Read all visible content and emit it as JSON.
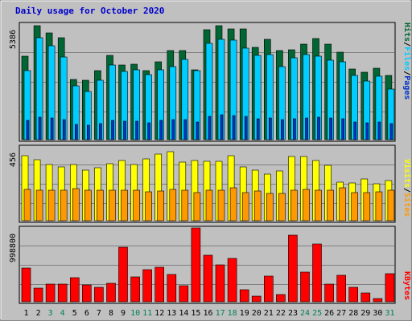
{
  "chart_data": {
    "type": "bar",
    "title": "Daily usage for October 2020",
    "categories": [
      "1",
      "2",
      "3",
      "4",
      "5",
      "6",
      "7",
      "8",
      "9",
      "10",
      "11",
      "12",
      "13",
      "14",
      "15",
      "16",
      "17",
      "18",
      "19",
      "20",
      "21",
      "22",
      "23",
      "24",
      "25",
      "26",
      "27",
      "28",
      "29",
      "30",
      "31"
    ],
    "weekend_days": [
      "3",
      "4",
      "10",
      "11",
      "17",
      "18",
      "24",
      "25",
      "31"
    ],
    "top_panel": {
      "axis_max_label": "5386",
      "ylim": [
        0,
        5386
      ],
      "grid": true,
      "series": [
        {
          "name": "Hits",
          "color": "#006633",
          "values": [
            3880,
            5300,
            4980,
            4760,
            2790,
            2760,
            3220,
            3940,
            3460,
            3520,
            3210,
            3640,
            4140,
            4140,
            3250,
            5120,
            5300,
            5180,
            5160,
            4290,
            4690,
            4150,
            4200,
            4450,
            4720,
            4450,
            4090,
            3310,
            3140,
            3320,
            3010
          ]
        },
        {
          "name": "Files",
          "color": "#00CCFF",
          "values": [
            3230,
            4740,
            4390,
            3860,
            2520,
            2240,
            2780,
            3470,
            3180,
            3240,
            3020,
            3270,
            3420,
            3740,
            3200,
            4480,
            4690,
            4640,
            4270,
            3940,
            3950,
            3390,
            3820,
            3980,
            3900,
            3720,
            3620,
            3010,
            2740,
            2970,
            2340
          ]
        },
        {
          "name": "Pages",
          "color": "#0033CC",
          "values": [
            900,
            1050,
            1000,
            950,
            700,
            680,
            750,
            900,
            850,
            860,
            800,
            880,
            950,
            950,
            820,
            1100,
            1150,
            1120,
            1100,
            980,
            1000,
            940,
            960,
            1000,
            1050,
            1000,
            960,
            830,
            800,
            820,
            760
          ]
        }
      ]
    },
    "middle_panel": {
      "axis_max_label": "456",
      "ylim": [
        0,
        456
      ],
      "grid": true,
      "series": [
        {
          "name": "Visits",
          "color": "#FFFF00",
          "values": [
            402,
            378,
            347,
            331,
            345,
            310,
            326,
            352,
            374,
            349,
            383,
            409,
            424,
            362,
            371,
            369,
            367,
            402,
            331,
            313,
            289,
            309,
            395,
            398,
            372,
            341,
            240,
            235,
            259,
            229,
            250
          ]
        },
        {
          "name": "Sites",
          "color": "#FF9900",
          "values": [
            191,
            187,
            186,
            187,
            196,
            190,
            186,
            188,
            189,
            188,
            179,
            184,
            195,
            188,
            175,
            186,
            188,
            203,
            173,
            182,
            170,
            170,
            188,
            194,
            187,
            188,
            203,
            171,
            172,
            178,
            186
          ]
        }
      ]
    },
    "bottom_panel": {
      "axis_max_label": "998800",
      "ylim": [
        0,
        998800
      ],
      "grid": true,
      "series": [
        {
          "name": "KBytes",
          "color": "#FF0000",
          "values": [
            451000,
            184000,
            241000,
            240000,
            324000,
            224000,
            191000,
            249000,
            734000,
            341000,
            439000,
            471000,
            365000,
            214000,
            998800,
            629000,
            504000,
            583000,
            165000,
            72000,
            350000,
            100000,
            899000,
            400000,
            780000,
            240000,
            362000,
            196000,
            119000,
            40000,
            376000
          ]
        }
      ]
    },
    "legend_labels": {
      "top": [
        "Pages",
        "Files",
        "Hits"
      ],
      "middle": [
        "Sites",
        "Visits"
      ],
      "bottom": [
        "KBytes"
      ],
      "separator": "/"
    }
  }
}
